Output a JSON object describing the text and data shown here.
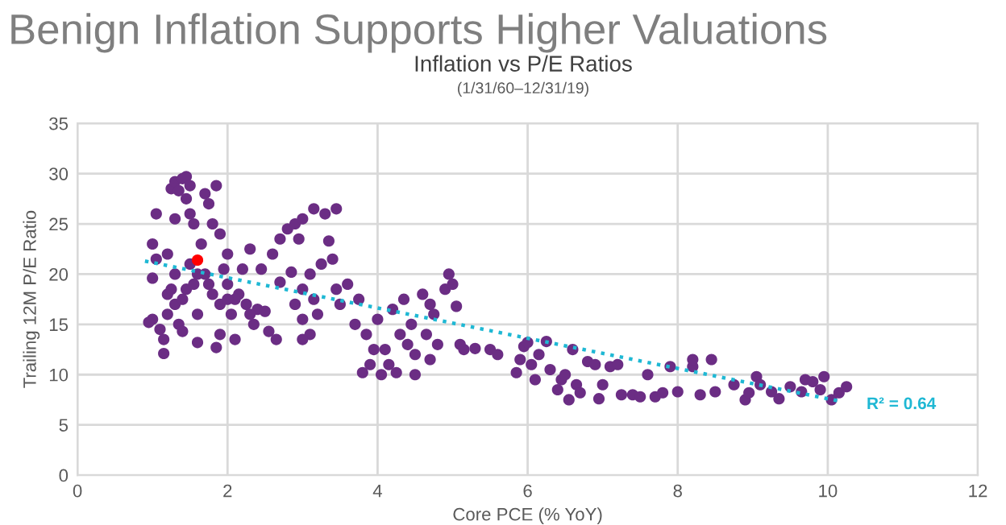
{
  "chart_data": {
    "type": "scatter",
    "title": "Benign Inflation Supports Higher Valuations",
    "subtitle": "Inflation vs P/E Ratios",
    "xlabel": "Core PCE (% YoY)",
    "ylabel": "Trailing 12M P/E Ratio",
    "annotations": [
      "(1/31/60–12/31/19)",
      "R² = 0.64"
    ],
    "series": [
      {
        "color": "#6b2d84",
        "x": [
          1.0,
          0.95,
          1.0,
          1.05,
          1.0,
          1.05,
          1.1,
          1.15,
          1.15,
          1.2,
          1.2,
          1.2,
          1.25,
          1.3,
          1.35,
          1.4,
          1.45,
          1.5,
          1.45,
          1.5,
          1.55,
          1.3,
          1.3,
          1.3,
          1.35,
          1.4,
          1.45,
          1.5,
          1.55,
          1.6,
          1.6,
          1.65,
          1.7,
          1.75,
          1.8,
          1.85,
          1.9,
          1.9,
          1.85,
          1.9,
          1.95,
          2.0,
          2.0,
          2.05,
          2.1,
          2.15,
          2.2,
          2.25,
          2.3,
          2.35,
          2.4,
          2.45,
          2.5,
          2.6,
          2.65,
          2.55,
          1.7,
          1.8,
          2.1,
          1.25,
          1.4,
          1.6,
          1.75,
          2.0,
          2.3,
          2.7,
          2.8,
          2.9,
          2.95,
          3.0,
          3.15,
          3.3,
          3.45,
          2.7,
          2.85,
          3.0,
          3.1,
          3.15,
          3.2,
          3.25,
          3.35,
          3.4,
          3.45,
          3.5,
          2.9,
          3.0,
          3.1,
          3.0,
          3.6,
          3.7,
          3.75,
          3.85,
          3.8,
          3.9,
          3.95,
          4.0,
          4.05,
          4.1,
          4.2,
          4.15,
          4.25,
          4.3,
          4.35,
          4.4,
          4.45,
          4.5,
          4.5,
          4.6,
          4.65,
          4.7,
          4.75,
          4.7,
          4.8,
          4.9,
          4.95,
          5.0,
          5.05,
          5.1,
          5.15,
          5.3,
          5.5,
          5.6,
          5.85,
          5.9,
          5.95,
          6.0,
          6.05,
          6.1,
          6.15,
          6.25,
          6.3,
          6.4,
          6.45,
          6.5,
          6.55,
          6.6,
          6.65,
          6.7,
          6.8,
          6.9,
          6.95,
          7.0,
          7.1,
          7.2,
          7.25,
          7.4,
          7.5,
          7.6,
          7.7,
          7.8,
          7.9,
          8.0,
          8.2,
          8.2,
          8.3,
          8.45,
          8.5,
          8.75,
          8.9,
          8.95,
          9.05,
          9.1,
          9.25,
          9.35,
          9.5,
          9.65,
          9.7,
          9.8,
          9.9,
          9.95,
          10.05,
          10.15,
          10.25
        ],
        "values": [
          15.5,
          15.2,
          19.6,
          21.5,
          23,
          26,
          14.5,
          12.1,
          13.5,
          16,
          18,
          22,
          28.5,
          29.2,
          28.3,
          29.5,
          29.7,
          28.8,
          27.5,
          26,
          25,
          25.5,
          20,
          17,
          15,
          14.3,
          18.5,
          21,
          19,
          16,
          13.2,
          23,
          28,
          27,
          25,
          28.8,
          24,
          14,
          12.7,
          17,
          20.5,
          22,
          19,
          16,
          13.5,
          18,
          20.5,
          17,
          22.5,
          15,
          16.5,
          20.5,
          16.3,
          22,
          13.5,
          14.3,
          20,
          18,
          17.5,
          18.5,
          17.5,
          20,
          19,
          17.5,
          16,
          23.5,
          24.5,
          25,
          23.5,
          25.5,
          26.5,
          26,
          26.5,
          19.2,
          20.2,
          18.5,
          20,
          17.5,
          16,
          21,
          23.3,
          21.5,
          18.5,
          17,
          17,
          15.5,
          14,
          13.5,
          19,
          15,
          17.5,
          14,
          10.2,
          11,
          12.5,
          15.5,
          10,
          12.5,
          16.5,
          11,
          10.2,
          14,
          17.5,
          13,
          15,
          12,
          10,
          18,
          14,
          17,
          16,
          11.5,
          13,
          18.5,
          20,
          19,
          16.8,
          13,
          12.5,
          12.6,
          12.5,
          12,
          10.2,
          11.5,
          12.8,
          13.2,
          11,
          9.5,
          12,
          13.3,
          10.5,
          8.5,
          9.5,
          10,
          7.5,
          12.5,
          9,
          8.2,
          11.3,
          11,
          7.6,
          9,
          10.8,
          11,
          8,
          8,
          7.8,
          10,
          7.8,
          8.2,
          10.8,
          8.3,
          10.8,
          11.5,
          8,
          11.5,
          8.3,
          9,
          7.5,
          8.2,
          9.8,
          9,
          8.3,
          7.6,
          8.8,
          8.3,
          9.5,
          9.3,
          8.5,
          9.8,
          7.5,
          8.2,
          8.8
        ]
      },
      {
        "color": "#ff0000",
        "x": [
          1.6
        ],
        "values": [
          21.4
        ]
      },
      {
        "type": "line",
        "color": "#1fb8d4",
        "line_style": "dotted",
        "marker": "none",
        "x": [
          0.9,
          10.2
        ],
        "values": [
          21.3,
          7.3
        ]
      }
    ],
    "xlim": [
      0,
      12
    ],
    "xticks": [
      0,
      2,
      4,
      6,
      8,
      10,
      12
    ],
    "ylim": [
      0,
      35
    ],
    "yticks": [
      0,
      5,
      10,
      15,
      20,
      25,
      30,
      35
    ],
    "grid": true,
    "marker": "circle",
    "legend": false
  }
}
